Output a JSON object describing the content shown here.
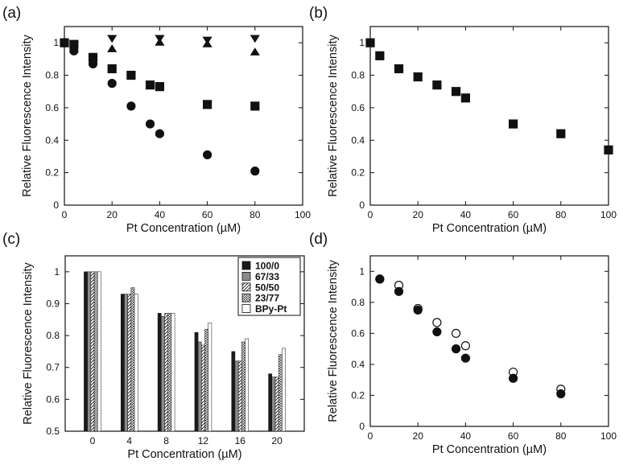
{
  "chart_data": [
    {
      "panel": "(a)",
      "type": "scatter",
      "xlabel": "Pt Concentration (µM)",
      "ylabel": "Relative Fluorescence Intensity",
      "xlim": [
        0,
        100
      ],
      "ylim": [
        0,
        1.1
      ],
      "xticks": [
        "0",
        "20",
        "40",
        "60",
        "80",
        "100"
      ],
      "yticks": [
        "0",
        "0.2",
        "0.4",
        "0.6",
        "0.8",
        "1"
      ],
      "grid": false,
      "series": [
        {
          "marker": "square",
          "filled": true,
          "points": [
            [
              0,
              1.0
            ],
            [
              4,
              0.99
            ],
            [
              12,
              0.91
            ],
            [
              20,
              0.84
            ],
            [
              28,
              0.8
            ],
            [
              36,
              0.74
            ],
            [
              40,
              0.73
            ],
            [
              60,
              0.62
            ],
            [
              80,
              0.61
            ]
          ]
        },
        {
          "marker": "circle",
          "filled": true,
          "points": [
            [
              0,
              1.0
            ],
            [
              4,
              0.95
            ],
            [
              12,
              0.87
            ],
            [
              20,
              0.75
            ],
            [
              28,
              0.61
            ],
            [
              36,
              0.5
            ],
            [
              40,
              0.44
            ],
            [
              60,
              0.31
            ],
            [
              80,
              0.21
            ]
          ]
        },
        {
          "marker": "triangle-down",
          "filled": true,
          "points": [
            [
              20,
              1.02
            ],
            [
              40,
              1.02
            ],
            [
              60,
              1.01
            ],
            [
              80,
              1.02
            ]
          ]
        },
        {
          "marker": "triangle-up",
          "filled": true,
          "points": [
            [
              20,
              0.97
            ],
            [
              40,
              1.01
            ],
            [
              60,
              1.0
            ],
            [
              80,
              0.95
            ]
          ]
        }
      ]
    },
    {
      "panel": "(b)",
      "type": "scatter",
      "xlabel": "Pt Concentration (µM)",
      "ylabel": "Relative Fluorescence Intensity",
      "xlim": [
        0,
        100
      ],
      "ylim": [
        0,
        1.1
      ],
      "xticks": [
        "0",
        "20",
        "40",
        "60",
        "80",
        "100"
      ],
      "yticks": [
        "0",
        "0.2",
        "0.4",
        "0.6",
        "0.8",
        "1"
      ],
      "grid": false,
      "series": [
        {
          "marker": "square",
          "filled": true,
          "points": [
            [
              0,
              1.0
            ],
            [
              4,
              0.92
            ],
            [
              12,
              0.84
            ],
            [
              20,
              0.79
            ],
            [
              28,
              0.74
            ],
            [
              36,
              0.7
            ],
            [
              40,
              0.66
            ],
            [
              60,
              0.5
            ],
            [
              80,
              0.44
            ],
            [
              100,
              0.34
            ]
          ]
        }
      ]
    },
    {
      "panel": "(c)",
      "type": "bar",
      "xlabel": "Pt Concentration (µM)",
      "ylabel": "Relative Fluorescence Intensity",
      "categories": [
        "0",
        "4",
        "8",
        "12",
        "16",
        "20"
      ],
      "ylim": [
        0.5,
        1.05
      ],
      "yticks": [
        "0.5",
        "0.6",
        "0.7",
        "0.8",
        "0.9",
        "1"
      ],
      "grid": false,
      "legend_position": "top-right",
      "series": [
        {
          "name": "100/0",
          "fill": "solid-black",
          "values": [
            1.0,
            0.93,
            0.87,
            0.81,
            0.75,
            0.68
          ]
        },
        {
          "name": "67/33",
          "fill": "solid-gray",
          "values": [
            1.0,
            0.93,
            0.86,
            0.78,
            0.72,
            0.67
          ]
        },
        {
          "name": "50/50",
          "fill": "diagonal-hatch",
          "values": [
            1.0,
            0.93,
            0.87,
            0.77,
            0.72,
            0.67
          ]
        },
        {
          "name": "23/77",
          "fill": "dotted",
          "values": [
            1.0,
            0.95,
            0.87,
            0.82,
            0.78,
            0.74
          ]
        },
        {
          "name": "BPy-Pt",
          "fill": "white",
          "values": [
            1.0,
            0.93,
            0.87,
            0.84,
            0.79,
            0.76
          ]
        }
      ]
    },
    {
      "panel": "(d)",
      "type": "scatter",
      "xlabel": "Pt Concentration (µM)",
      "ylabel": "Relative Fluorescence Intensity",
      "xlim": [
        0,
        100
      ],
      "ylim": [
        0,
        1.1
      ],
      "xticks": [
        "0",
        "20",
        "40",
        "60",
        "80",
        "100"
      ],
      "yticks": [
        "0",
        "0.2",
        "0.4",
        "0.6",
        "0.8",
        "1"
      ],
      "grid": false,
      "series": [
        {
          "marker": "circle",
          "filled": false,
          "points": [
            [
              4,
              0.95
            ],
            [
              12,
              0.91
            ],
            [
              20,
              0.76
            ],
            [
              28,
              0.67
            ],
            [
              36,
              0.6
            ],
            [
              40,
              0.52
            ],
            [
              60,
              0.35
            ],
            [
              80,
              0.24
            ]
          ]
        },
        {
          "marker": "circle",
          "filled": true,
          "points": [
            [
              4,
              0.95
            ],
            [
              12,
              0.87
            ],
            [
              20,
              0.75
            ],
            [
              28,
              0.61
            ],
            [
              36,
              0.5
            ],
            [
              40,
              0.44
            ],
            [
              60,
              0.31
            ],
            [
              80,
              0.21
            ]
          ]
        }
      ]
    }
  ]
}
